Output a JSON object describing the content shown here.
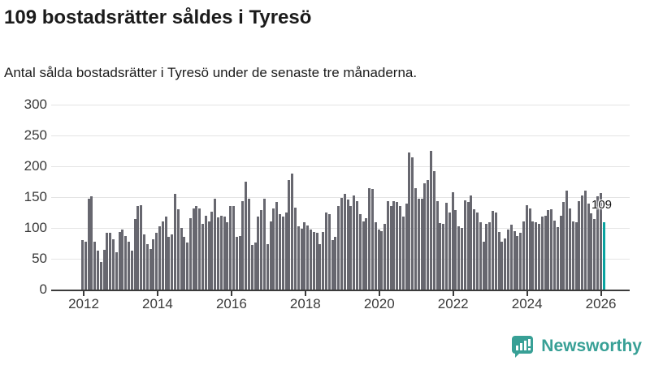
{
  "header": {
    "title": "109 bostadsrätter såldes i Tyresö",
    "subtitle": "Antal sålda bostadsrätter i Tyresö under de senaste tre månaderna."
  },
  "chart_data": {
    "type": "bar",
    "title": "109 bostadsrätter såldes i Tyresö",
    "subtitle": "Antal sålda bostadsrätter i Tyresö under de senaste tre månaderna.",
    "x_start": "2012-01",
    "x_end": "2026-02",
    "x_unit": "month",
    "ylim": [
      0,
      300
    ],
    "yticks": [
      0,
      50,
      100,
      150,
      200,
      250,
      300
    ],
    "xtick_labels": [
      "2012",
      "2014",
      "2016",
      "2018",
      "2020",
      "2022",
      "2024",
      "2026"
    ],
    "grid": "horizontal",
    "bar_color": "#67676f",
    "highlight_color": "#0aa3a0",
    "highlight_last_bar": true,
    "last_value_label": "109",
    "values": [
      80,
      78,
      148,
      151,
      77,
      63,
      45,
      65,
      92,
      92,
      81,
      60,
      93,
      97,
      87,
      78,
      63,
      115,
      136,
      137,
      89,
      74,
      66,
      81,
      92,
      103,
      110,
      118,
      85,
      90,
      155,
      130,
      100,
      85,
      76,
      116,
      132,
      135,
      132,
      107,
      120,
      111,
      126,
      148,
      117,
      120,
      118,
      109,
      136,
      136,
      85,
      87,
      144,
      175,
      147,
      72,
      76,
      118,
      129,
      147,
      74,
      111,
      131,
      142,
      122,
      118,
      125,
      178,
      188,
      133,
      103,
      99,
      109,
      104,
      98,
      94,
      92,
      74,
      94,
      125,
      122,
      80,
      85,
      136,
      149,
      155,
      146,
      136,
      153,
      144,
      123,
      111,
      116,
      165,
      163,
      109,
      98,
      95,
      107,
      144,
      136,
      143,
      142,
      136,
      118,
      140,
      222,
      215,
      164,
      147,
      147,
      173,
      178,
      225,
      192,
      144,
      108,
      106,
      141,
      125,
      158,
      129,
      103,
      100,
      145,
      142,
      153,
      130,
      125,
      109,
      78,
      107,
      109,
      127,
      125,
      93,
      78,
      83,
      98,
      105,
      95,
      87,
      92,
      111,
      137,
      131,
      111,
      109,
      107,
      118,
      120,
      129,
      130,
      112,
      101,
      120,
      142,
      161,
      131,
      111,
      109,
      144,
      153,
      160,
      140,
      124,
      114,
      151,
      156,
      109
    ]
  },
  "footer": {
    "brand": "Newsworthy",
    "brand_color": "#38a096",
    "logo_icon": "bar-chart-speech-bubble-icon"
  }
}
